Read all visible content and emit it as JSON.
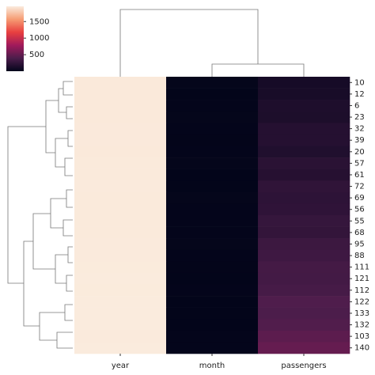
{
  "chart_data": {
    "type": "heatmap",
    "columns": [
      "year",
      "month",
      "passengers"
    ],
    "rows": [
      10,
      12,
      6,
      23,
      32,
      39,
      20,
      57,
      61,
      72,
      69,
      56,
      55,
      68,
      95,
      88,
      111,
      121,
      112,
      122,
      133,
      132,
      103,
      140
    ],
    "values": [
      [
        1949,
        11,
        104
      ],
      [
        1950,
        1,
        115
      ],
      [
        1949,
        7,
        148
      ],
      [
        1950,
        12,
        140
      ],
      [
        1951,
        9,
        184
      ],
      [
        1952,
        4,
        181
      ],
      [
        1950,
        9,
        158
      ],
      [
        1953,
        10,
        211
      ],
      [
        1954,
        2,
        188
      ],
      [
        1955,
        1,
        242
      ],
      [
        1954,
        10,
        229
      ],
      [
        1953,
        9,
        237
      ],
      [
        1953,
        8,
        272
      ],
      [
        1954,
        9,
        259
      ],
      [
        1956,
        12,
        306
      ],
      [
        1956,
        5,
        318
      ],
      [
        1958,
        4,
        348
      ],
      [
        1959,
        2,
        342
      ],
      [
        1958,
        5,
        363
      ],
      [
        1959,
        3,
        406
      ],
      [
        1960,
        2,
        391
      ],
      [
        1960,
        1,
        417
      ],
      [
        1957,
        8,
        467
      ],
      [
        1960,
        9,
        508
      ]
    ],
    "colormap": "rocket",
    "clim": [
      1,
      1960
    ],
    "cticks": [
      500,
      1000,
      1500
    ]
  }
}
